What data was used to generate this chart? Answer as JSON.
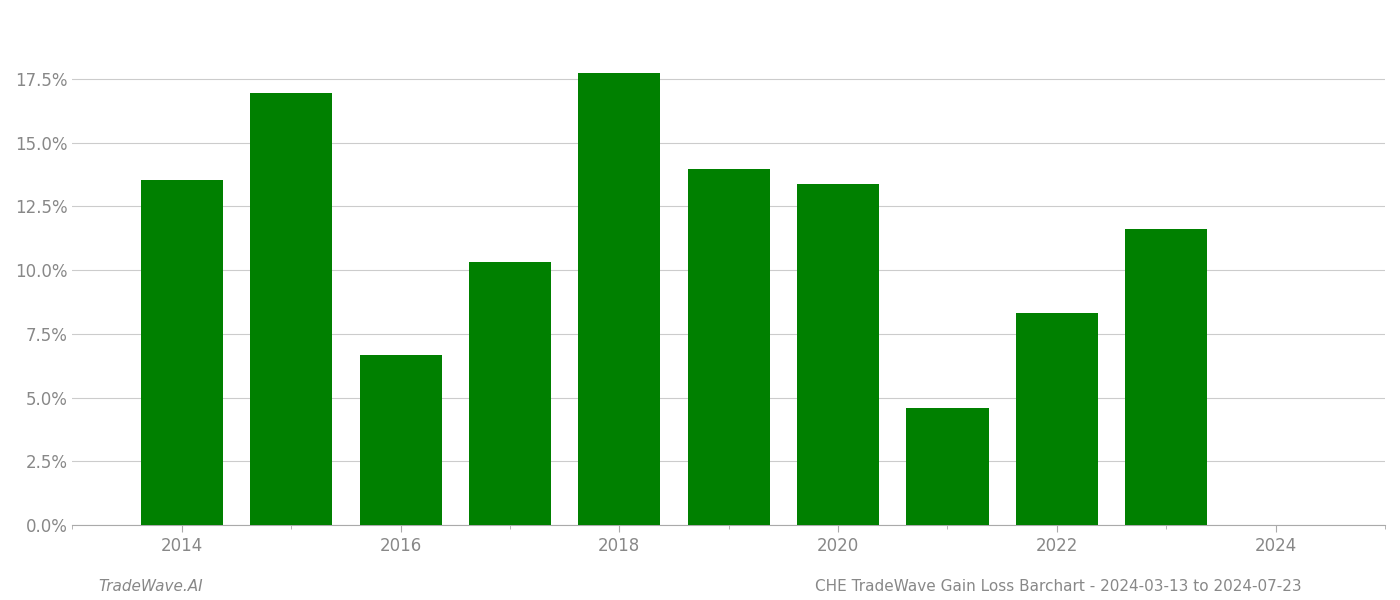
{
  "years": [
    2014,
    2015,
    2016,
    2017,
    2018,
    2019,
    2020,
    2021,
    2022,
    2023
  ],
  "values": [
    0.1355,
    0.1693,
    0.0668,
    0.103,
    0.1773,
    0.1395,
    0.1338,
    0.046,
    0.0832,
    0.116
  ],
  "bar_color": "#008000",
  "background_color": "#ffffff",
  "grid_color": "#cccccc",
  "footer_left": "TradeWave.AI",
  "footer_right": "CHE TradeWave Gain Loss Barchart - 2024-03-13 to 2024-07-23",
  "ylim": [
    0,
    0.2
  ],
  "yticks": [
    0.0,
    0.025,
    0.05,
    0.075,
    0.1,
    0.125,
    0.15,
    0.175
  ],
  "ytick_labels": [
    "0.0%",
    "2.5%",
    "5.0%",
    "7.5%",
    "10.0%",
    "12.5%",
    "15.0%",
    "17.5%"
  ],
  "xticks_labeled": [
    2014,
    2016,
    2018,
    2020,
    2022,
    2024
  ],
  "xticks_minor": [
    2013,
    2014,
    2015,
    2016,
    2017,
    2018,
    2019,
    2020,
    2021,
    2022,
    2023,
    2024,
    2025
  ],
  "bar_width": 0.75,
  "xlim": [
    2013.0,
    2025.0
  ],
  "spine_color": "#aaaaaa",
  "tick_color": "#888888",
  "footer_fontsize": 11,
  "tick_fontsize": 12
}
